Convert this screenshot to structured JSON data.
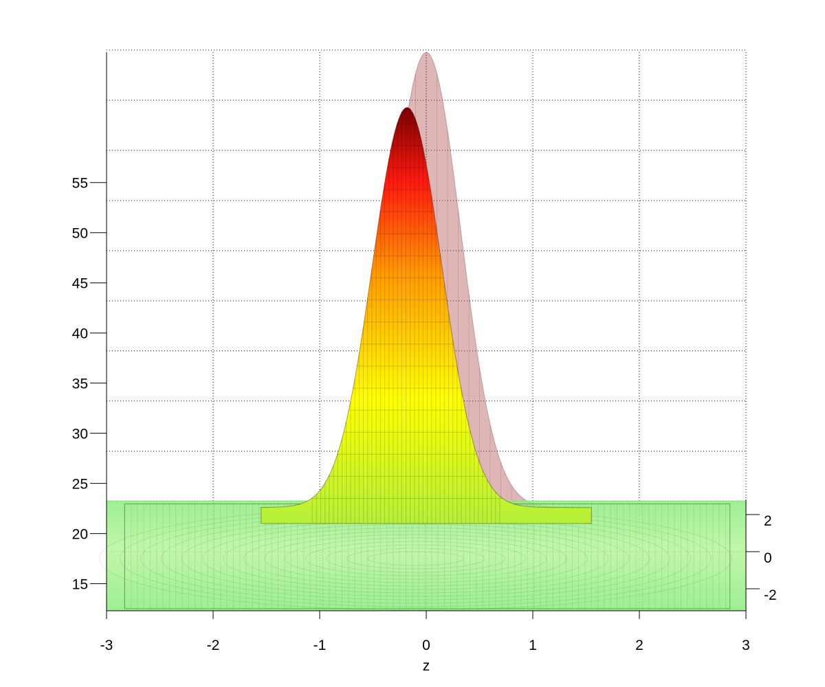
{
  "chart_data": {
    "type": "surface",
    "xlabel": "z",
    "ylabel": "",
    "zlabel": "",
    "grid": true,
    "x_ticks": [
      "-3",
      "-2",
      "-1",
      "0",
      "1",
      "2",
      "3"
    ],
    "xlim": [
      -3,
      3
    ],
    "z_ticks": [
      "15",
      "20",
      "25",
      "30",
      "35",
      "40",
      "45",
      "50",
      "55"
    ],
    "zlim": [
      12.3,
      68
    ],
    "depth_ticks": [
      "2",
      "0",
      "-2"
    ],
    "series": [
      {
        "style": "transparent",
        "baseline": 22.6,
        "peak_x": 0.0,
        "peak_value": 68.0,
        "width": 0.46,
        "color": "#a84040"
      },
      {
        "style": "opaque",
        "baseline": 22.6,
        "peak_x": -0.18,
        "peak_value": 62.5,
        "width": 0.46,
        "colormap": [
          "#90ee70",
          "#b4f03a",
          "#ffff00",
          "#ff9a00",
          "#ff1a10",
          "#7a0000"
        ]
      }
    ],
    "floor": {
      "color": "#8cec80",
      "z_range": [
        12.3,
        23.3
      ]
    },
    "curves": {
      "x": [
        -1.5,
        -1.25,
        -1.0,
        -0.75,
        -0.5,
        -0.4,
        -0.3,
        -0.2,
        -0.1,
        0.0,
        0.1,
        0.2,
        0.3,
        0.4,
        0.5,
        0.75,
        1.0,
        1.25,
        1.5
      ]
    }
  }
}
